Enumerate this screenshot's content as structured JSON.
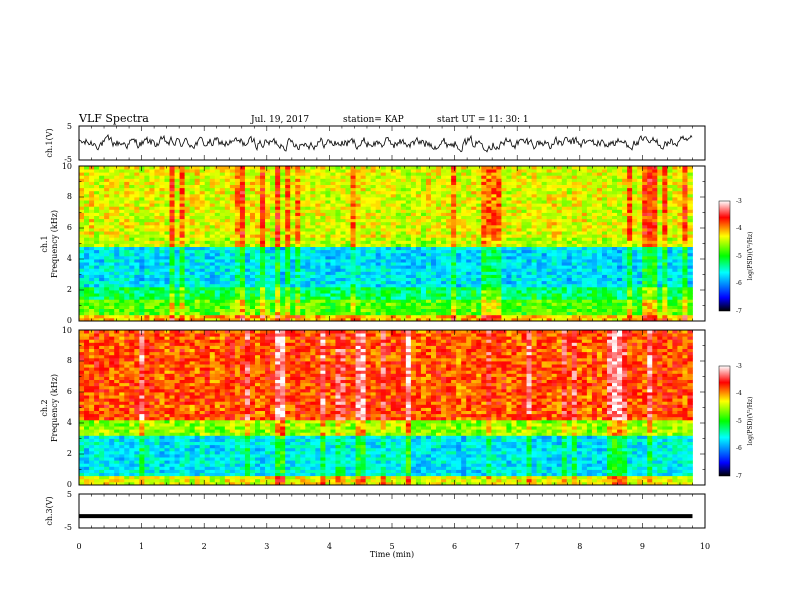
{
  "header": {
    "title": "VLF Spectra",
    "date": "Jul. 19, 2017",
    "station": "station= KAP",
    "start": "start UT =  11: 30: 1"
  },
  "chart_data": [
    {
      "type": "line",
      "name": "ch1-voltage",
      "ylabel": "ch.1(V)",
      "ylim": [
        -5,
        5
      ],
      "yticks": [
        "5",
        "-5"
      ],
      "xlim": [
        0,
        10
      ],
      "trace_color": "#000000"
    },
    {
      "type": "heatmap",
      "name": "ch1-spectrogram",
      "ylabel_line1": "ch.1",
      "ylabel_line2": "Frequency (kHz)",
      "ylim": [
        0,
        10
      ],
      "yticks": [
        "0",
        "2",
        "4",
        "6",
        "8",
        "10"
      ],
      "xlim": [
        0,
        10
      ],
      "data_end_min": 9.8,
      "colorbar": {
        "min": -7,
        "max": -3,
        "ticks": [
          "-3",
          "-4",
          "-5",
          "-6",
          "-7"
        ],
        "label": "log(PSD)(V²/Hz)"
      }
    },
    {
      "type": "heatmap",
      "name": "ch2-spectrogram",
      "ylabel_line1": "ch.2",
      "ylabel_line2": "Frequency (kHz)",
      "ylim": [
        0,
        10
      ],
      "yticks": [
        "0",
        "2",
        "4",
        "6",
        "8",
        "10"
      ],
      "xlim": [
        0,
        10
      ],
      "data_end_min": 9.8,
      "colorbar": {
        "min": -7,
        "max": -3,
        "ticks": [
          "-3",
          "-4",
          "-5",
          "-6",
          "-7"
        ],
        "label": "log(PSD)(V²/Hz)"
      }
    },
    {
      "type": "line",
      "name": "ch3-voltage",
      "ylabel": "ch.3(V)",
      "ylim": [
        -5,
        5
      ],
      "yticks": [
        "5",
        "-5"
      ],
      "xlim": [
        0,
        10
      ],
      "trace_value": -1.5,
      "trace_color": "#000000"
    }
  ],
  "x_axis": {
    "label": "Time (min)",
    "ticks": [
      "0",
      "1",
      "2",
      "3",
      "4",
      "5",
      "6",
      "7",
      "8",
      "9",
      "10"
    ]
  },
  "colors": {
    "colormap": [
      "#000066",
      "#0000ff",
      "#00ffff",
      "#00ff00",
      "#ffff00",
      "#ff0000",
      "#ffffff"
    ]
  }
}
